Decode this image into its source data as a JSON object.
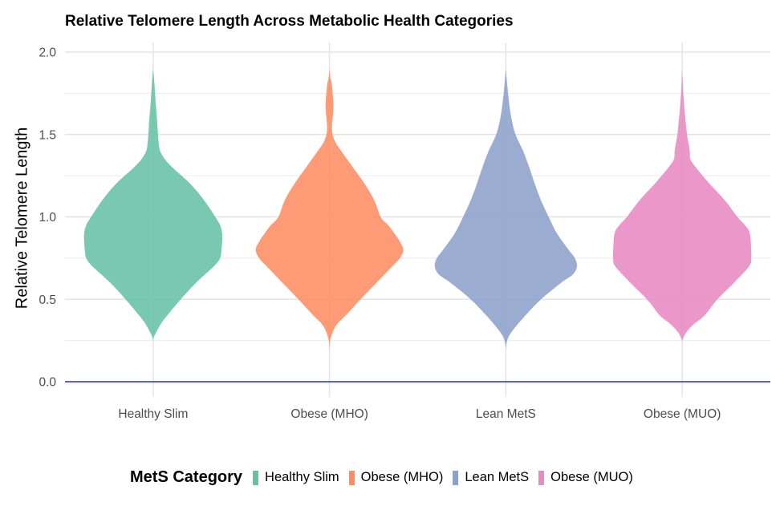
{
  "chart_data": {
    "type": "violin",
    "title": "Relative Telomere Length Across Metabolic Health Categories",
    "xlabel": "",
    "ylabel": "Relative Telomere Length",
    "ylim": [
      0,
      2.0
    ],
    "yticks": [
      0.0,
      0.5,
      1.0,
      1.5,
      2.0
    ],
    "ytick_labels": [
      "0.0",
      "0.5",
      "1.0",
      "1.5",
      "2.0"
    ],
    "minor_grid": [
      0.25,
      0.75,
      1.25,
      1.75
    ],
    "grid": true,
    "reference_line": {
      "y": 0.0,
      "color": "#0000ff"
    },
    "categories": [
      "Healthy Slim",
      "Obese (MHO)",
      "Lean MetS",
      "Obese (MUO)"
    ],
    "legend": {
      "title": "MetS Category",
      "position": "bottom",
      "entries": [
        "Healthy Slim",
        "Obese (MHO)",
        "Lean MetS",
        "Obese (MUO)"
      ]
    },
    "series": [
      {
        "name": "Healthy Slim",
        "color": "#66c2a5",
        "y_range": [
          0.25,
          1.9
        ],
        "density_profile": [
          [
            1.9,
            0
          ],
          [
            1.8,
            0.02
          ],
          [
            1.7,
            0.035
          ],
          [
            1.6,
            0.055
          ],
          [
            1.5,
            0.07
          ],
          [
            1.45,
            0.08
          ],
          [
            1.4,
            0.1
          ],
          [
            1.35,
            0.17
          ],
          [
            1.3,
            0.28
          ],
          [
            1.2,
            0.54
          ],
          [
            1.1,
            0.74
          ],
          [
            1.0,
            0.9
          ],
          [
            0.95,
            0.97
          ],
          [
            0.9,
            1.0
          ],
          [
            0.85,
            1.0
          ],
          [
            0.8,
            0.99
          ],
          [
            0.75,
            0.97
          ],
          [
            0.7,
            0.88
          ],
          [
            0.6,
            0.62
          ],
          [
            0.5,
            0.4
          ],
          [
            0.4,
            0.2
          ],
          [
            0.35,
            0.11
          ],
          [
            0.3,
            0.045
          ],
          [
            0.27,
            0.01
          ],
          [
            0.25,
            0
          ]
        ]
      },
      {
        "name": "Obese (MHO)",
        "color": "#fc8d62",
        "y_range": [
          0.2,
          1.9
        ],
        "density_profile": [
          [
            1.9,
            0
          ],
          [
            1.85,
            0.01
          ],
          [
            1.8,
            0.035
          ],
          [
            1.7,
            0.055
          ],
          [
            1.65,
            0.055
          ],
          [
            1.6,
            0.045
          ],
          [
            1.55,
            0.035
          ],
          [
            1.5,
            0.045
          ],
          [
            1.45,
            0.09
          ],
          [
            1.4,
            0.17
          ],
          [
            1.3,
            0.34
          ],
          [
            1.2,
            0.51
          ],
          [
            1.1,
            0.65
          ],
          [
            1.0,
            0.74
          ],
          [
            0.95,
            0.85
          ],
          [
            0.9,
            0.94
          ],
          [
            0.85,
            1.02
          ],
          [
            0.8,
            1.07
          ],
          [
            0.75,
            1.02
          ],
          [
            0.7,
            0.91
          ],
          [
            0.6,
            0.68
          ],
          [
            0.5,
            0.45
          ],
          [
            0.4,
            0.23
          ],
          [
            0.35,
            0.11
          ],
          [
            0.3,
            0.045
          ],
          [
            0.25,
            0.01
          ],
          [
            0.2,
            0
          ]
        ]
      },
      {
        "name": "Lean MetS",
        "color": "#8da0cb",
        "y_range": [
          0.2,
          1.9
        ],
        "density_profile": [
          [
            1.9,
            0
          ],
          [
            1.8,
            0.02
          ],
          [
            1.7,
            0.045
          ],
          [
            1.6,
            0.08
          ],
          [
            1.5,
            0.14
          ],
          [
            1.4,
            0.25
          ],
          [
            1.3,
            0.34
          ],
          [
            1.2,
            0.42
          ],
          [
            1.1,
            0.51
          ],
          [
            1.0,
            0.62
          ],
          [
            0.9,
            0.74
          ],
          [
            0.8,
            0.91
          ],
          [
            0.75,
            1.0
          ],
          [
            0.7,
            1.03
          ],
          [
            0.65,
            0.97
          ],
          [
            0.6,
            0.8
          ],
          [
            0.5,
            0.51
          ],
          [
            0.4,
            0.28
          ],
          [
            0.3,
            0.08
          ],
          [
            0.25,
            0.02
          ],
          [
            0.2,
            0
          ]
        ]
      },
      {
        "name": "Obese (MUO)",
        "color": "#e78ac3",
        "y_range": [
          0.25,
          1.9
        ],
        "density_profile": [
          [
            1.9,
            0
          ],
          [
            1.8,
            0.01
          ],
          [
            1.7,
            0.025
          ],
          [
            1.6,
            0.045
          ],
          [
            1.5,
            0.07
          ],
          [
            1.45,
            0.09
          ],
          [
            1.4,
            0.11
          ],
          [
            1.35,
            0.12
          ],
          [
            1.3,
            0.2
          ],
          [
            1.2,
            0.4
          ],
          [
            1.1,
            0.62
          ],
          [
            1.0,
            0.8
          ],
          [
            0.95,
            0.91
          ],
          [
            0.9,
            0.98
          ],
          [
            0.8,
            1.0
          ],
          [
            0.75,
            1.0
          ],
          [
            0.7,
            0.97
          ],
          [
            0.6,
            0.75
          ],
          [
            0.5,
            0.51
          ],
          [
            0.4,
            0.32
          ],
          [
            0.35,
            0.17
          ],
          [
            0.3,
            0.06
          ],
          [
            0.25,
            0
          ]
        ]
      }
    ]
  }
}
